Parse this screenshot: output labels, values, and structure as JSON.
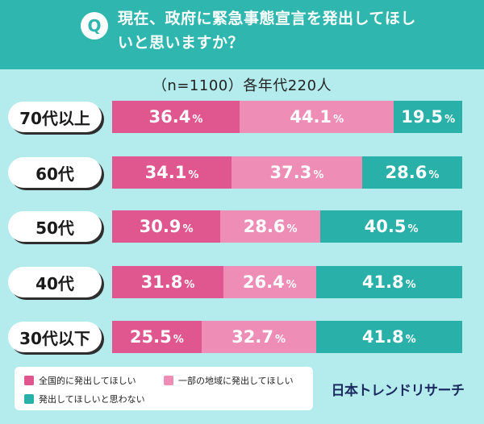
{
  "header": {
    "badge": "Q",
    "question": "現在、政府に緊急事態宣言を発出してほしいと思いますか？"
  },
  "sample_note": "（n=1100）各年代220人",
  "colors": {
    "background": "#b4ecee",
    "header": "#2fb6ae",
    "series": [
      "#e0568f",
      "#ee8db6",
      "#29b0a9"
    ]
  },
  "chart_data": {
    "type": "bar",
    "orientation": "horizontal",
    "stacked": true,
    "unit": "%",
    "xlim": [
      0,
      100
    ],
    "categories": [
      "70代以上",
      "60代",
      "50代",
      "40代",
      "30代以下"
    ],
    "series": [
      {
        "name": "全国的に発出してほしい",
        "values": [
          36.4,
          34.1,
          30.9,
          31.8,
          25.5
        ]
      },
      {
        "name": "一部の地域に発出してほしい",
        "values": [
          44.1,
          37.3,
          28.6,
          26.4,
          32.7
        ]
      },
      {
        "name": "発出してほしいと思わない",
        "values": [
          19.5,
          28.6,
          40.5,
          41.8,
          41.8
        ]
      }
    ]
  },
  "legend": {
    "items": [
      {
        "label": "全国的に発出してほしい",
        "color": "#e0568f"
      },
      {
        "label": "一部の地域に発出してほしい",
        "color": "#ee8db6"
      },
      {
        "label": "発出してほしいと思わない",
        "color": "#29b0a9"
      }
    ]
  },
  "brand": "日本トレンドリサーチ"
}
